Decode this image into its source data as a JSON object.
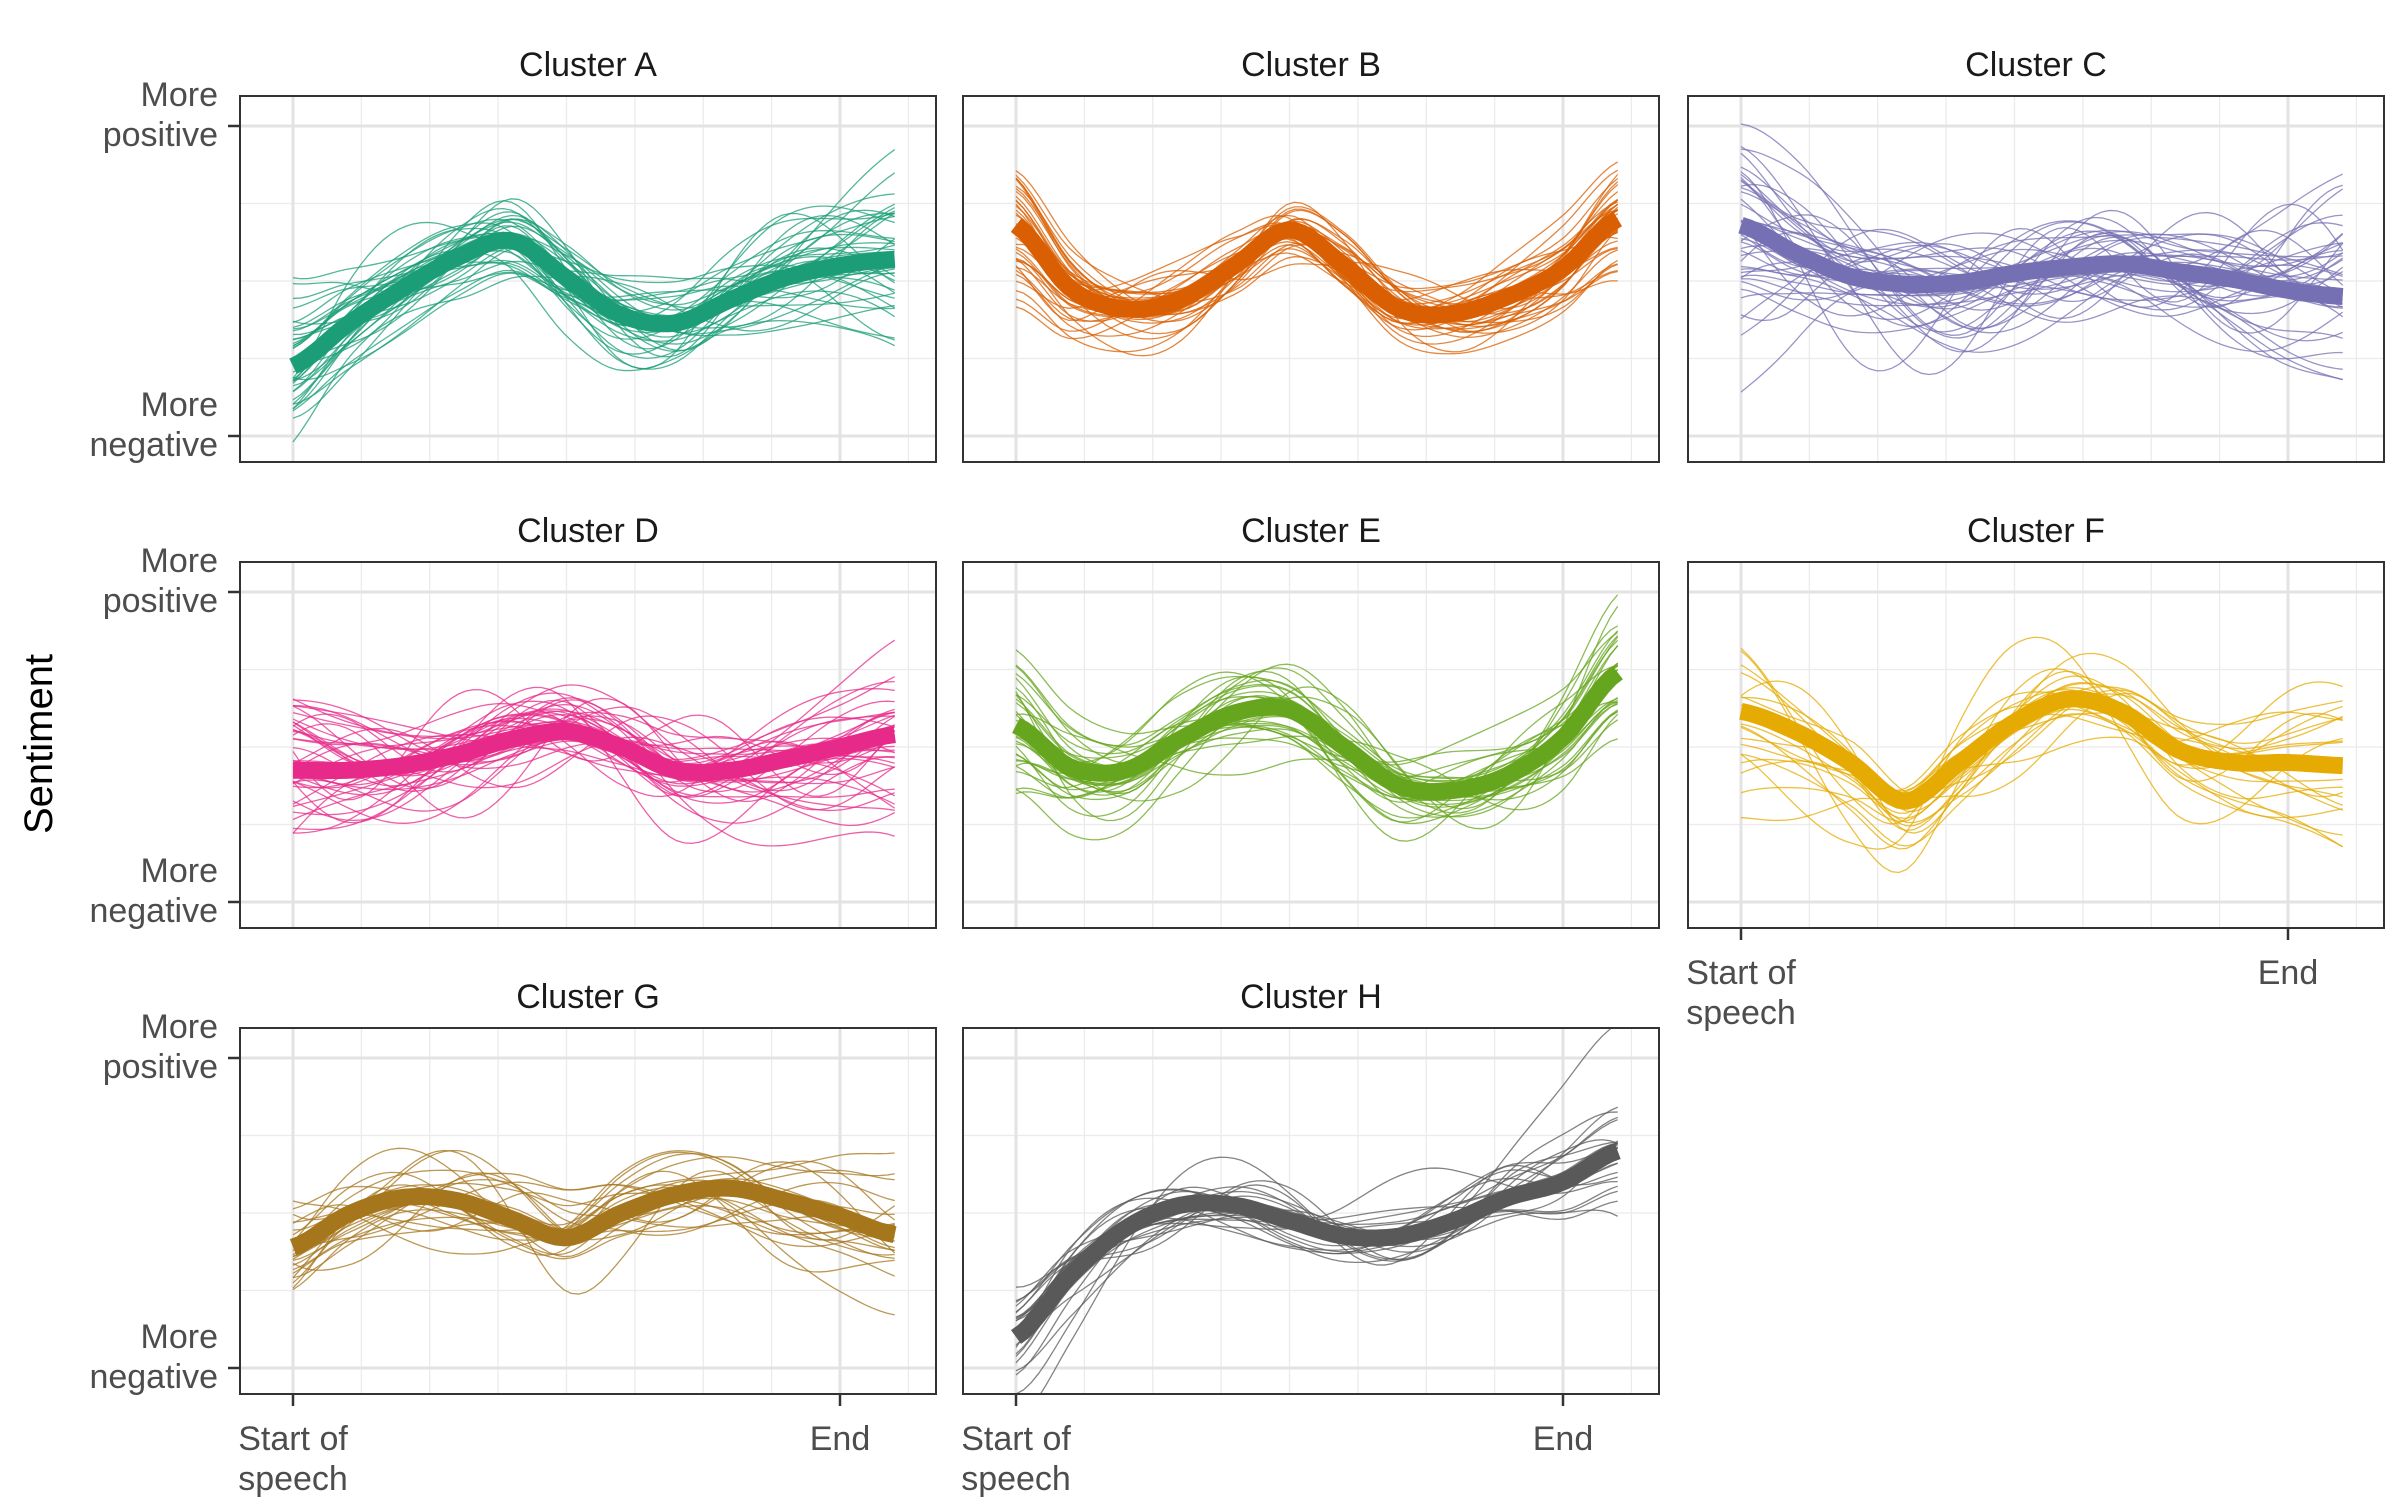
{
  "chart_data": {
    "type": "line",
    "facet_layout": "3x3 grid, shared axes",
    "grid": true,
    "x_range": [
      0,
      1
    ],
    "y_range": [
      -1,
      1
    ],
    "ylabel": "Sentiment",
    "xlabel": "",
    "y_ticks": [
      {
        "value": 1,
        "label_lines": [
          "More",
          "positive"
        ]
      },
      {
        "value": -1,
        "label_lines": [
          "More",
          "negative"
        ]
      }
    ],
    "x_ticks": [
      {
        "value": 0,
        "label_lines": [
          "Start of",
          "speech"
        ]
      },
      {
        "value": 1,
        "label_lines": [
          "End"
        ]
      }
    ],
    "x": [
      0,
      0.1,
      0.2,
      0.3,
      0.4,
      0.5,
      0.6,
      0.7,
      0.8,
      0.9,
      1.0,
      1.1
    ],
    "series": [
      {
        "name": "Cluster A",
        "color": "#1b9e77",
        "n_individual": 40,
        "spread": 0.17,
        "values": [
          -0.55,
          -0.28,
          -0.05,
          0.15,
          0.26,
          0.02,
          -0.22,
          -0.27,
          -0.12,
          0.02,
          0.1,
          0.14
        ]
      },
      {
        "name": "Cluster B",
        "color": "#d95f02",
        "n_individual": 40,
        "spread": 0.13,
        "values": [
          0.36,
          -0.05,
          -0.18,
          -0.12,
          0.1,
          0.33,
          0.1,
          -0.18,
          -0.21,
          -0.1,
          0.08,
          0.4
        ]
      },
      {
        "name": "Cluster C",
        "color": "#7570b3",
        "n_individual": 40,
        "spread": 0.22,
        "values": [
          0.36,
          0.18,
          0.03,
          -0.02,
          -0.01,
          0.05,
          0.09,
          0.11,
          0.06,
          0.01,
          -0.06,
          -0.1
        ]
      },
      {
        "name": "Cluster D",
        "color": "#e7298a",
        "n_individual": 40,
        "spread": 0.17,
        "values": [
          -0.15,
          -0.15,
          -0.12,
          -0.05,
          0.05,
          0.1,
          0.0,
          -0.15,
          -0.15,
          -0.08,
          0.0,
          0.08
        ]
      },
      {
        "name": "Cluster E",
        "color": "#66a61e",
        "n_individual": 35,
        "spread": 0.15,
        "values": [
          0.14,
          -0.13,
          -0.15,
          0.05,
          0.22,
          0.24,
          0.0,
          -0.25,
          -0.28,
          -0.18,
          0.06,
          0.48
        ]
      },
      {
        "name": "Cluster F",
        "color": "#e6ab02",
        "n_individual": 22,
        "spread": 0.17,
        "values": [
          0.23,
          0.1,
          -0.1,
          -0.35,
          -0.1,
          0.16,
          0.31,
          0.22,
          -0.02,
          -0.1,
          -0.1,
          -0.12
        ]
      },
      {
        "name": "Cluster G",
        "color": "#a6761d",
        "n_individual": 25,
        "spread": 0.15,
        "values": [
          -0.22,
          -0.01,
          0.1,
          0.08,
          -0.04,
          -0.16,
          0.0,
          0.12,
          0.16,
          0.08,
          -0.02,
          -0.14
        ]
      },
      {
        "name": "Cluster H",
        "color": "#595959",
        "n_individual": 25,
        "spread": 0.14,
        "values": [
          -0.8,
          -0.4,
          -0.1,
          0.05,
          0.05,
          -0.05,
          -0.15,
          -0.15,
          -0.05,
          0.1,
          0.2,
          0.4
        ]
      }
    ]
  }
}
